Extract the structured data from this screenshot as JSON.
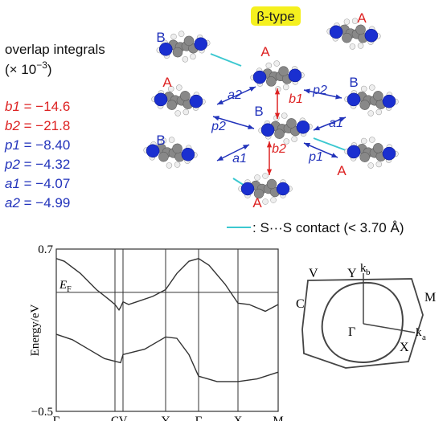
{
  "structure": {
    "badge": "β-type",
    "molecule_labels": [
      "B",
      "A",
      "A",
      "A",
      "B",
      "B",
      "B",
      "A",
      "A"
    ],
    "arrow_labels": [
      {
        "text": "a2",
        "color": "#2233bb"
      },
      {
        "text": "b1",
        "color": "#dd2222"
      },
      {
        "text": "p2",
        "color": "#2233bb"
      },
      {
        "text": "p2",
        "color": "#2233bb"
      },
      {
        "text": "a1",
        "color": "#2233bb"
      },
      {
        "text": "a1",
        "color": "#2233bb"
      },
      {
        "text": "b2",
        "color": "#dd2222"
      },
      {
        "text": "p1",
        "color": "#2233bb"
      }
    ],
    "legend": ": S···S contact (< 3.70 Å)"
  },
  "overlap": {
    "title": "overlap integrals",
    "unit_prefix": "(× 10",
    "unit_exp": "−3",
    "unit_suffix": ")",
    "items": [
      {
        "name": "b1",
        "eq": " = ",
        "value": "−14.6",
        "color": "#dd2222"
      },
      {
        "name": "b2",
        "eq": " = ",
        "value": "−21.8",
        "color": "#dd2222"
      },
      {
        "name": "p1",
        "eq": " = ",
        "value": "−8.40",
        "color": "#2233bb"
      },
      {
        "name": "p2",
        "eq": " = ",
        "value": "−4.32",
        "color": "#2233bb"
      },
      {
        "name": "a1",
        "eq": " = ",
        "value": "−4.07",
        "color": "#2233bb"
      },
      {
        "name": "a2",
        "eq": " = ",
        "value": "−4.99",
        "color": "#2233bb"
      }
    ]
  },
  "chart_data": {
    "type": "line",
    "ylabel": "Energy/eV",
    "xlim": [
      0,
      276
    ],
    "ylim": [
      -0.5,
      0.7
    ],
    "yticks": [
      0.7,
      {
        "value": -0.5,
        "label": "−0.5"
      }
    ],
    "xticks": [
      {
        "value": 0,
        "label": "Γ"
      },
      {
        "value": 73,
        "label": "C"
      },
      {
        "value": 83,
        "label": "V"
      },
      {
        "value": 136,
        "label": "Y"
      },
      {
        "value": 177,
        "label": "Γ"
      },
      {
        "value": 226,
        "label": "X"
      },
      {
        "value": 276,
        "label": "M"
      }
    ],
    "fermi": {
      "value": 0.38,
      "label": "E",
      "sub": "F"
    },
    "series": [
      {
        "color": "#333333",
        "x": [
          0,
          10,
          30,
          50,
          65,
          73,
          78,
          80,
          83,
          90,
          100,
          120,
          136,
          150,
          165,
          177,
          190,
          210,
          226,
          240,
          260,
          276
        ],
        "values": [
          0.63,
          0.61,
          0.52,
          0.4,
          0.33,
          0.29,
          0.25,
          0.27,
          0.31,
          0.29,
          0.31,
          0.35,
          0.4,
          0.52,
          0.61,
          0.63,
          0.58,
          0.44,
          0.3,
          0.29,
          0.24,
          0.29
        ]
      },
      {
        "color": "#333333",
        "x": [
          0,
          20,
          40,
          60,
          73,
          80,
          83,
          90,
          110,
          136,
          150,
          165,
          177,
          200,
          226,
          250,
          276
        ],
        "values": [
          0.07,
          0.03,
          -0.04,
          -0.11,
          -0.13,
          -0.14,
          -0.08,
          -0.07,
          -0.04,
          0.05,
          0.04,
          -0.08,
          -0.24,
          -0.28,
          -0.28,
          -0.26,
          -0.21
        ]
      }
    ]
  },
  "fermi_surface": {
    "labels": [
      "V",
      "Y",
      "k",
      "b",
      "M",
      "C",
      "Γ",
      "X",
      "k",
      "a"
    ]
  }
}
